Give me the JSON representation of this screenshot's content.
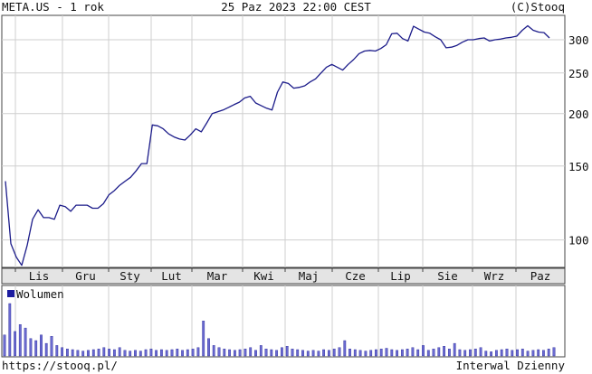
{
  "header": {
    "left": "META.US - 1 rok",
    "center": "25 Paz 2023 22:00 CEST",
    "right": "(C)Stooq"
  },
  "footer": {
    "left": "https://stooq.pl/",
    "right": "Interwal Dzienny"
  },
  "colors": {
    "price_line": "#1c1c8a",
    "volume_bar": "#6a6ad0",
    "volume_edge": "#2a2a9a",
    "grid": "#cfcfcf",
    "month_band": "#e4e4e4"
  },
  "chart_data": [
    {
      "type": "line",
      "title": "",
      "yscale": "log",
      "ylim": [
        86,
        343
      ],
      "yticks": [
        100,
        150,
        200,
        250,
        300
      ],
      "ytick_labels": [
        "100",
        "150",
        "200",
        "250",
        "300"
      ],
      "x_tick_labels": [
        "Lis",
        "Gru",
        "Sty",
        "Lut",
        "Mar",
        "Kwi",
        "Maj",
        "Cze",
        "Lip",
        "Sie",
        "Wrz",
        "Paz"
      ],
      "grid": true,
      "values": [
        138,
        98,
        91,
        87,
        97,
        112,
        118,
        113,
        113,
        112,
        121,
        120,
        117,
        121,
        121,
        121,
        119,
        119,
        122,
        128,
        131,
        135,
        138,
        141,
        146,
        152,
        152,
        188,
        187,
        184,
        179,
        176,
        174,
        173,
        178,
        184,
        181,
        190,
        200,
        202,
        204,
        207,
        210,
        213,
        218,
        220,
        212,
        209,
        206,
        204,
        225,
        238,
        236,
        230,
        231,
        233,
        238,
        242,
        250,
        258,
        262,
        258,
        254,
        262,
        269,
        278,
        282,
        283,
        282,
        286,
        292,
        310,
        311,
        302,
        298,
        323,
        318,
        313,
        311,
        305,
        300,
        287,
        288,
        291,
        296,
        300,
        300,
        302,
        303,
        298,
        300,
        301,
        303,
        304,
        306,
        316,
        324,
        316,
        313,
        312,
        303
      ]
    },
    {
      "type": "bar",
      "legend": "Wolumen",
      "legend_position": "top-left",
      "values": [
        30,
        75,
        35,
        45,
        40,
        25,
        22,
        30,
        18,
        28,
        15,
        12,
        10,
        9,
        8,
        7,
        8,
        9,
        10,
        12,
        10,
        9,
        12,
        8,
        7,
        8,
        7,
        9,
        10,
        8,
        9,
        8,
        9,
        10,
        8,
        9,
        10,
        12,
        50,
        25,
        15,
        12,
        10,
        9,
        8,
        9,
        10,
        12,
        8,
        15,
        10,
        9,
        8,
        12,
        14,
        10,
        9,
        8,
        7,
        8,
        7,
        9,
        8,
        10,
        12,
        22,
        10,
        9,
        8,
        7,
        8,
        9,
        10,
        11,
        9,
        8,
        9,
        10,
        12,
        9,
        15,
        8,
        10,
        12,
        14,
        10,
        18,
        9,
        8,
        9,
        10,
        12,
        7,
        6,
        8,
        9,
        10,
        8,
        9,
        10,
        7,
        8,
        9,
        8,
        10,
        12
      ]
    }
  ]
}
